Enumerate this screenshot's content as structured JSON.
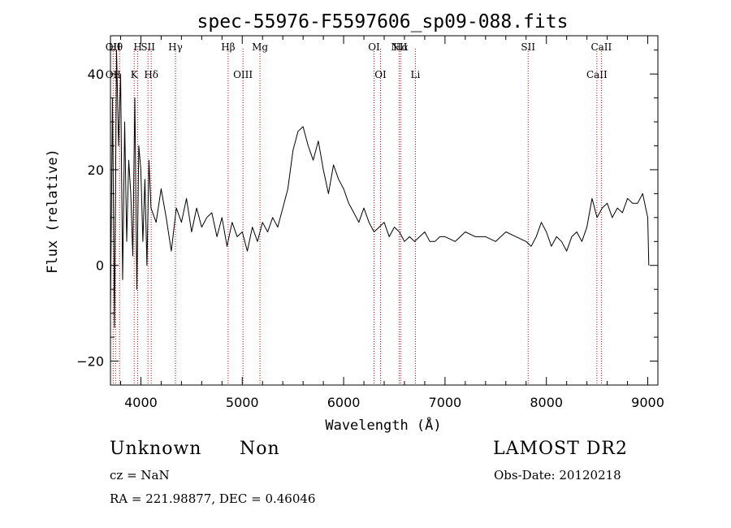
{
  "chart_data": {
    "type": "line",
    "title": "spec-55976-F5597606_sp09-088.fits",
    "xlabel": "Wavelength (Å)",
    "ylabel": "Flux (relative)",
    "xlim": [
      3700,
      9100
    ],
    "ylim": [
      -25,
      48
    ],
    "xticks": [
      4000,
      5000,
      6000,
      7000,
      8000,
      9000
    ],
    "yticks": [
      -20,
      0,
      20,
      40
    ],
    "grid": false,
    "line_color": "#000000",
    "marker_color": "#cc0000",
    "series": [
      {
        "x": [
          3700,
          3720,
          3740,
          3760,
          3780,
          3800,
          3820,
          3840,
          3860,
          3880,
          3900,
          3920,
          3940,
          3960,
          3980,
          4000,
          4020,
          4040,
          4060,
          4080,
          4100,
          4150,
          4200,
          4250,
          4300,
          4350,
          4400,
          4450,
          4500,
          4550,
          4600,
          4650,
          4700,
          4750,
          4800,
          4850,
          4900,
          4950,
          5000,
          5050,
          5100,
          5150,
          5200,
          5250,
          5300,
          5350,
          5400,
          5450,
          5500,
          5550,
          5600,
          5650,
          5700,
          5750,
          5800,
          5850,
          5900,
          5950,
          6000,
          6050,
          6100,
          6150,
          6200,
          6250,
          6300,
          6350,
          6400,
          6450,
          6500,
          6550,
          6600,
          6650,
          6700,
          6750,
          6800,
          6850,
          6900,
          6950,
          7000,
          7100,
          7200,
          7300,
          7400,
          7500,
          7600,
          7700,
          7800,
          7850,
          7900,
          7950,
          8000,
          8050,
          8100,
          8150,
          8200,
          8250,
          8300,
          8350,
          8400,
          8450,
          8500,
          8550,
          8600,
          8650,
          8700,
          8750,
          8800,
          8850,
          8900,
          8950,
          8980,
          9000,
          9010
        ],
        "y": [
          -10,
          35,
          -13,
          45,
          25,
          40,
          -3,
          30,
          5,
          22,
          15,
          2,
          35,
          -5,
          25,
          20,
          5,
          18,
          0,
          22,
          12,
          9,
          16,
          10,
          3,
          12,
          9,
          14,
          7,
          12,
          8,
          10,
          11,
          6,
          10,
          4,
          9,
          6,
          7,
          3,
          8,
          5,
          9,
          7,
          10,
          8,
          12,
          16,
          24,
          28,
          29,
          25,
          22,
          26,
          20,
          15,
          21,
          18,
          16,
          13,
          11,
          9,
          12,
          9,
          7,
          8,
          9,
          6,
          8,
          7,
          5,
          6,
          5,
          6,
          7,
          5,
          5,
          6,
          6,
          5,
          7,
          6,
          6,
          5,
          7,
          6,
          5,
          4,
          6,
          9,
          7,
          4,
          6,
          5,
          3,
          6,
          7,
          5,
          8,
          14,
          10,
          12,
          13,
          10,
          12,
          11,
          14,
          13,
          13,
          15,
          12,
          10,
          0
        ]
      }
    ],
    "lines": [
      {
        "x": 3727,
        "top": "OII",
        "bottom": "OII"
      },
      {
        "x": 3750,
        "top": "Hθ"
      },
      {
        "x": 3790,
        "top": ""
      },
      {
        "x": 3934,
        "bottom": "K"
      },
      {
        "x": 3969,
        "top": "H"
      },
      {
        "x": 4070,
        "top": "SII"
      },
      {
        "x": 4102,
        "bottom": "Hδ"
      },
      {
        "x": 4341,
        "top": "Hγ"
      },
      {
        "x": 4861,
        "top": "Hβ"
      },
      {
        "x": 5007,
        "bottom": "OIII"
      },
      {
        "x": 5175,
        "top": "Mg"
      },
      {
        "x": 6300,
        "top": "OI"
      },
      {
        "x": 6364,
        "bottom": "OI"
      },
      {
        "x": 6548,
        "top": "NII"
      },
      {
        "x": 6563,
        "top": "Hα"
      },
      {
        "x": 6708,
        "bottom": "Li"
      },
      {
        "x": 7820,
        "top": "SII"
      },
      {
        "x": 8498,
        "bottom": "CaII"
      },
      {
        "x": 8542,
        "top": "CaII"
      }
    ]
  },
  "info": {
    "class": "Unknown",
    "subclass": "Non",
    "survey": "LAMOST DR2",
    "cz": "cz = NaN",
    "obs_date": "Obs-Date: 20120218",
    "coords": "RA = 221.98877, DEC =    0.46046"
  }
}
